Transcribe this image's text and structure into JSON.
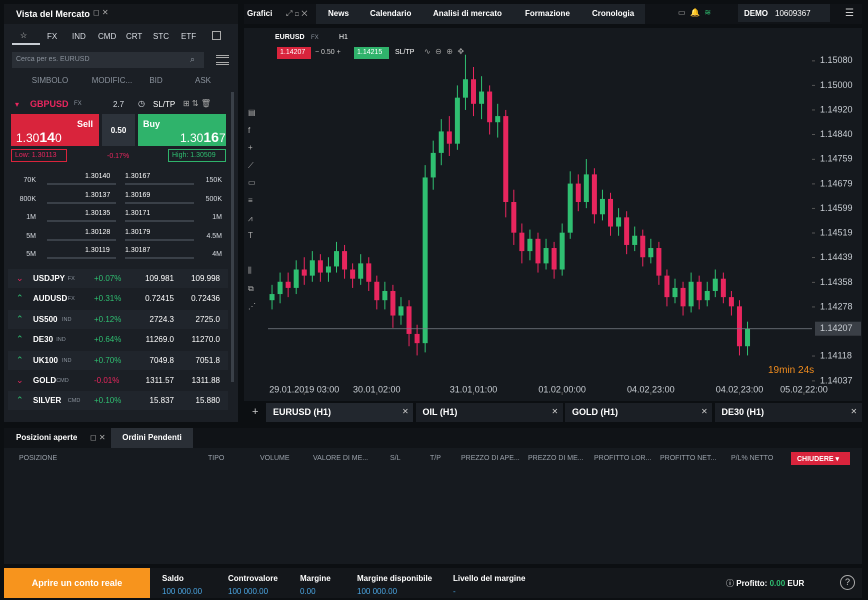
{
  "market_watch": {
    "title": "Vista del Mercato",
    "tabs": [
      "FX",
      "IND",
      "CMD",
      "CRT",
      "STC",
      "ETF"
    ],
    "search_placeholder": "Cerca per es. EURUSD",
    "columns": [
      "SIMBOLO",
      "MODIFIC...",
      "BID",
      "ASK"
    ],
    "expanded": {
      "symbol": "GBPUSD",
      "tag": "FX",
      "spread": "2.7",
      "sltp": "SL/TP",
      "sell_label": "Sell",
      "sell_price": [
        "1.30",
        "14",
        "0"
      ],
      "lot": "0.50",
      "buy_label": "Buy",
      "buy_price": [
        "1.30",
        "16",
        "7"
      ],
      "low": "Low: 1.30113",
      "change": "-0.17%",
      "high": "High: 1.30509",
      "depth": [
        [
          "70K",
          "1.30140",
          "1.30167",
          "150K"
        ],
        [
          "800K",
          "1.30137",
          "1.30169",
          "500K"
        ],
        [
          "1M",
          "1.30135",
          "1.30171",
          "1M"
        ],
        [
          "5M",
          "1.30128",
          "1.30179",
          "4.5M"
        ],
        [
          "5M",
          "1.30119",
          "1.30187",
          "4M"
        ]
      ]
    },
    "instruments": [
      [
        "USDJPY",
        "FX",
        "+0.07%",
        "109.981",
        "109.998"
      ],
      [
        "AUDUSD",
        "FX",
        "+0.31%",
        "0.72415",
        "0.72436"
      ],
      [
        "US500",
        "IND",
        "+0.12%",
        "2724.3",
        "2725.0"
      ],
      [
        "DE30",
        "IND",
        "+0.64%",
        "11269.0",
        "11270.0"
      ],
      [
        "UK100",
        "IND",
        "+0.70%",
        "7049.8",
        "7051.8"
      ],
      [
        "GOLD",
        "CMD",
        "-0.01%",
        "1311.57",
        "1311.88"
      ],
      [
        "SILVER",
        "CMD",
        "+0.10%",
        "15.837",
        "15.880"
      ]
    ]
  },
  "top_nav": {
    "charts": "Grafici",
    "tabs": [
      "News",
      "Calendario",
      "Analisi di mercato",
      "Formazione",
      "Cronologia"
    ],
    "account_type": "DEMO",
    "account_number": "10609367"
  },
  "chart_toolbar": {
    "symbol": "EURUSD",
    "tag": "FX",
    "timeframe": "H1",
    "sell": "1.14207",
    "lot": "0.50",
    "buy": "1.14215",
    "sltp": "SL/TP"
  },
  "chart_data": {
    "type": "candlestick",
    "ylim": [
      1.13991,
      1.15161
    ],
    "yticks": [
      {
        "value": 1.1508,
        "label": "1.15080"
      },
      {
        "value": 1.15,
        "label": "1.15000"
      },
      {
        "value": 1.1492,
        "label": "1.14920"
      },
      {
        "value": 1.1484,
        "label": "1.14840"
      },
      1.14759,
      1.14679,
      1.14599,
      1.14519,
      1.14439,
      1.14358,
      1.14278,
      1.14118,
      1.14037
    ],
    "xlim": [
      -0.5,
      67
    ],
    "xticks": [
      {
        "value": 4,
        "label": "29.01.2019 03:00"
      },
      {
        "value": 13,
        "label": "30.01 02:00"
      },
      {
        "value": 25,
        "label": "31.01 01:00"
      },
      {
        "value": 36,
        "label": "01.02 00:00"
      },
      {
        "value": 47,
        "label": "04.02 23:00"
      },
      {
        "value": 58,
        "label": "04.02 23:00"
      },
      {
        "value": 66,
        "label": "05.02 22:00"
      }
    ],
    "open": [
      1.143,
      1.1432,
      1.1436,
      1.1434,
      1.144,
      1.1438,
      1.1443,
      1.1439,
      1.1441,
      1.1446,
      1.144,
      1.1437,
      1.1442,
      1.1436,
      1.143,
      1.1433,
      1.1425,
      1.1428,
      1.1419,
      1.1416,
      1.147,
      1.1478,
      1.1485,
      1.1481,
      1.1496,
      1.1502,
      1.1494,
      1.1498,
      1.1488,
      1.149,
      1.1462,
      1.1452,
      1.1446,
      1.145,
      1.1442,
      1.1447,
      1.144,
      1.1452,
      1.1468,
      1.1462,
      1.1471,
      1.1458,
      1.1463,
      1.1454,
      1.1457,
      1.1448,
      1.1451,
      1.1444,
      1.1447,
      1.1438,
      1.1431,
      1.1434,
      1.1428,
      1.1436,
      1.143,
      1.1433,
      1.1437,
      1.1431,
      1.1428,
      1.1415
    ],
    "high": [
      1.1435,
      1.1439,
      1.1439,
      1.1443,
      1.1444,
      1.1446,
      1.1445,
      1.1444,
      1.1449,
      1.1448,
      1.1442,
      1.1445,
      1.1444,
      1.1438,
      1.1436,
      1.1435,
      1.1431,
      1.143,
      1.1422,
      1.1474,
      1.1482,
      1.1489,
      1.149,
      1.15,
      1.151,
      1.1506,
      1.1503,
      1.15,
      1.1494,
      1.1492,
      1.1466,
      1.1455,
      1.1453,
      1.1452,
      1.145,
      1.1449,
      1.1455,
      1.1472,
      1.1471,
      1.1476,
      1.1473,
      1.1466,
      1.1465,
      1.146,
      1.1459,
      1.1454,
      1.1453,
      1.145,
      1.1449,
      1.144,
      1.1437,
      1.1436,
      1.1439,
      1.1438,
      1.1436,
      1.144,
      1.1439,
      1.1433,
      1.143,
      1.1423
    ],
    "low": [
      1.1427,
      1.1429,
      1.1431,
      1.1432,
      1.1435,
      1.1436,
      1.1436,
      1.1436,
      1.1439,
      1.1437,
      1.1434,
      1.1435,
      1.1433,
      1.1427,
      1.1427,
      1.1421,
      1.1422,
      1.1415,
      1.1412,
      1.1413,
      1.1466,
      1.1474,
      1.1477,
      1.1479,
      1.1492,
      1.149,
      1.1489,
      1.1484,
      1.1483,
      1.1457,
      1.1448,
      1.1442,
      1.1443,
      1.1439,
      1.144,
      1.1437,
      1.1438,
      1.145,
      1.1459,
      1.146,
      1.1455,
      1.1456,
      1.1451,
      1.1451,
      1.1445,
      1.1446,
      1.1441,
      1.1442,
      1.1435,
      1.1428,
      1.1429,
      1.1425,
      1.1426,
      1.1427,
      1.1428,
      1.1431,
      1.1429,
      1.1425,
      1.1412,
      1.1412
    ],
    "close": [
      1.1432,
      1.1436,
      1.1434,
      1.144,
      1.1438,
      1.1443,
      1.1439,
      1.1441,
      1.1446,
      1.144,
      1.1437,
      1.1442,
      1.1436,
      1.143,
      1.1433,
      1.1425,
      1.1428,
      1.1419,
      1.1416,
      1.147,
      1.1478,
      1.1485,
      1.1481,
      1.1496,
      1.1502,
      1.1494,
      1.1498,
      1.1488,
      1.149,
      1.1462,
      1.1452,
      1.1446,
      1.145,
      1.1442,
      1.1447,
      1.144,
      1.1452,
      1.1468,
      1.1462,
      1.1471,
      1.1458,
      1.1463,
      1.1454,
      1.1457,
      1.1448,
      1.1451,
      1.1444,
      1.1447,
      1.1438,
      1.1431,
      1.1434,
      1.1428,
      1.1436,
      1.143,
      1.1433,
      1.1437,
      1.1431,
      1.1428,
      1.1415,
      1.14207
    ],
    "up_color": "#2fbf71",
    "down_color": "#e8265e",
    "last_price": {
      "value": 1.14207,
      "label": "1.14207"
    },
    "countdown": "19min 24s"
  },
  "chart_tabs": [
    "EURUSD (H1)",
    "OIL (H1)",
    "GOLD (H1)",
    "DE30 (H1)"
  ],
  "positions": {
    "tabs": [
      "Posizioni aperte",
      "Ordini Pendenti"
    ],
    "columns": [
      "POSIZIONE",
      "TIPO",
      "VOLUME",
      "VALORE DI ME...",
      "S/L",
      "T/P",
      "PREZZO DI APE...",
      "PREZZO DI ME...",
      "PROFITTO LOR...",
      "PROFITTO NET...",
      "P/L% NETTO"
    ],
    "close_all": "CHIUDERE"
  },
  "footer": {
    "cta": "Aprire un conto reale",
    "stats": [
      [
        "Saldo",
        "100 000.00"
      ],
      [
        "Controvalore",
        "100 000.00"
      ],
      [
        "Margine",
        "0.00"
      ],
      [
        "Margine disponibile",
        "100 000.00"
      ],
      [
        "Livello del margine",
        "-"
      ]
    ],
    "profit_label": "Profitto:",
    "profit_value": "0.00",
    "currency": "EUR"
  }
}
